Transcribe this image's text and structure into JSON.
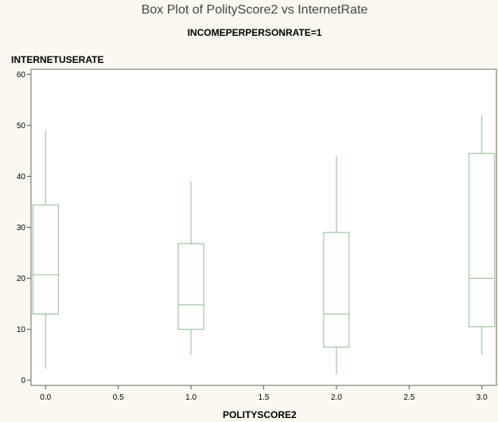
{
  "chart_data": {
    "type": "box",
    "title": "Box Plot of PolityScore2 vs InternetRate",
    "subtitle": "INCOMEPERPERSONRATE=1",
    "xlabel": "POLITYSCORE2",
    "ylabel": "INTERNETUSERATE",
    "xlim": [
      -0.1,
      3.1
    ],
    "ylim": [
      -1,
      61
    ],
    "xticks": [
      0.0,
      0.5,
      1.0,
      1.5,
      2.0,
      2.5,
      3.0
    ],
    "xtick_labels": [
      "0.0",
      "0.5",
      "1.0",
      "1.5",
      "2.0",
      "2.5",
      "3.0"
    ],
    "yticks": [
      0,
      10,
      20,
      30,
      40,
      50,
      60
    ],
    "ytick_labels": [
      "0",
      "10",
      "20",
      "30",
      "40",
      "50",
      "60"
    ],
    "grid": false,
    "box_color": "#8fb88f",
    "boxes": [
      {
        "x": 0.0,
        "whisker_low": 2.2,
        "q1": 13.0,
        "median": 20.7,
        "q3": 34.4,
        "whisker_high": 49.0
      },
      {
        "x": 1.0,
        "whisker_low": 5.0,
        "q1": 10.0,
        "median": 14.8,
        "q3": 26.8,
        "whisker_high": 39.0
      },
      {
        "x": 2.0,
        "whisker_low": 1.2,
        "q1": 6.5,
        "median": 13.0,
        "q3": 29.0,
        "whisker_high": 44.0
      },
      {
        "x": 3.0,
        "whisker_low": 5.0,
        "q1": 10.5,
        "median": 20.0,
        "q3": 44.5,
        "whisker_high": 52.0
      }
    ]
  }
}
